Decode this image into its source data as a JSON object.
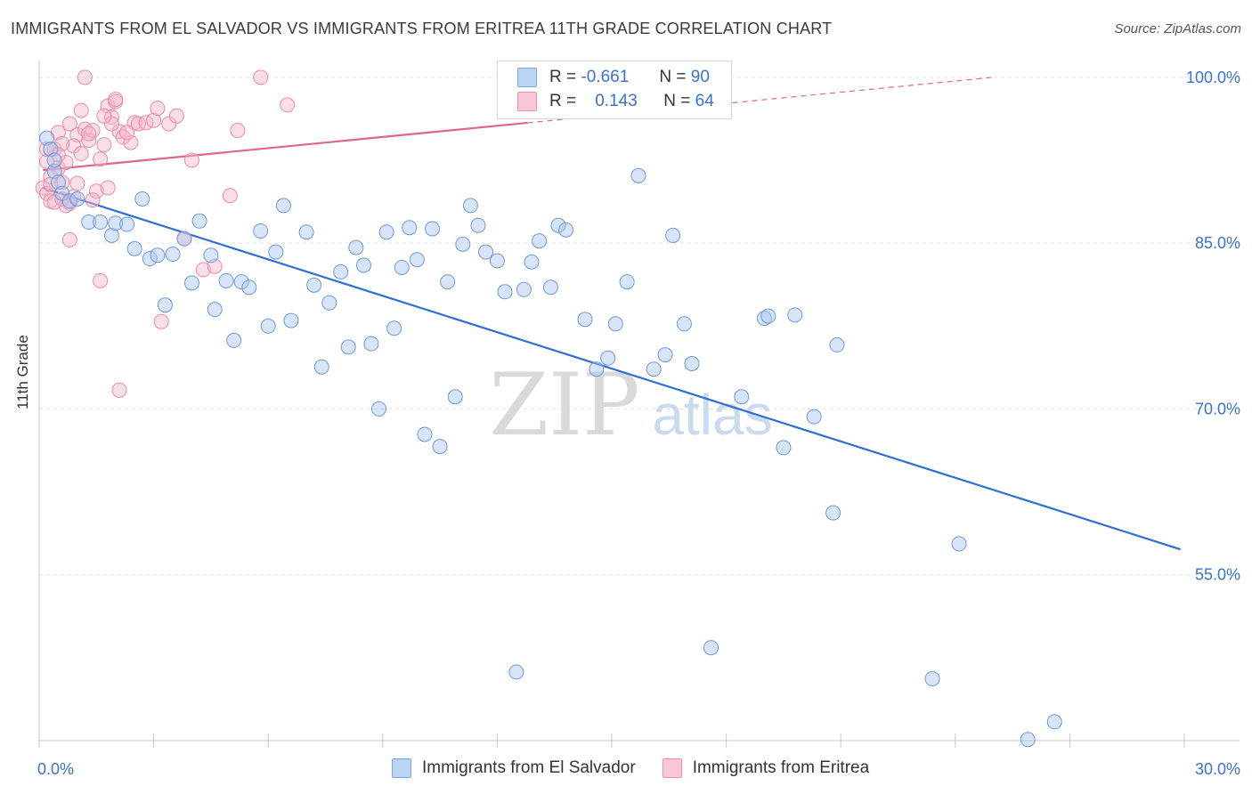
{
  "title": "IMMIGRANTS FROM EL SALVADOR VS IMMIGRANTS FROM ERITREA 11TH GRADE CORRELATION CHART",
  "source": "Source: ZipAtlas.com",
  "watermark": {
    "zip": "ZIP",
    "atlas": "atlas"
  },
  "legend": {
    "r_label": "R =",
    "n_label": "N =",
    "series": [
      {
        "name": "Immigrants from El Salvador",
        "r": "-0.661",
        "n": "90"
      },
      {
        "name": "Immigrants from Eritrea",
        "r": "0.143",
        "n": "64"
      }
    ]
  },
  "chart_data": {
    "type": "scatter",
    "ylabel": "11th Grade",
    "xlim": [
      0,
      30
    ],
    "ylim": [
      40,
      102
    ],
    "x_tick_labels": [
      {
        "value": 0,
        "label": "0.0%"
      },
      {
        "value": 30,
        "label": "30.0%"
      }
    ],
    "y_tick_labels": [
      {
        "value": 100,
        "label": "100.0%"
      },
      {
        "value": 85,
        "label": "85.0%"
      },
      {
        "value": 70,
        "label": "70.0%"
      },
      {
        "value": 55,
        "label": "55.0%"
      }
    ],
    "colors": {
      "el_salvador": "#a9c6ef",
      "el_salvador_line": "#2e6fd1",
      "eritrea": "#f4b6c9",
      "eritrea_line": "#e0658f"
    },
    "series": [
      {
        "name": "Immigrants from El Salvador",
        "trend": {
          "x0": 0.1,
          "y0": 90.0,
          "x1": 29.9,
          "y1": 57.3,
          "dashed_from": null
        },
        "points": [
          [
            0.2,
            94.5
          ],
          [
            0.3,
            93.5
          ],
          [
            0.4,
            91.5
          ],
          [
            0.5,
            90.5
          ],
          [
            0.6,
            89.5
          ],
          [
            0.8,
            88.8
          ],
          [
            1.0,
            89.0
          ],
          [
            1.3,
            86.9
          ],
          [
            1.6,
            86.9
          ],
          [
            1.9,
            85.7
          ],
          [
            2.0,
            86.8
          ],
          [
            2.3,
            86.7
          ],
          [
            2.5,
            84.5
          ],
          [
            2.7,
            89.0
          ],
          [
            2.9,
            83.6
          ],
          [
            3.1,
            83.9
          ],
          [
            3.3,
            79.4
          ],
          [
            3.5,
            84.0
          ],
          [
            3.8,
            85.4
          ],
          [
            4.0,
            81.4
          ],
          [
            4.2,
            87.0
          ],
          [
            4.5,
            83.9
          ],
          [
            4.6,
            79.0
          ],
          [
            4.9,
            81.6
          ],
          [
            5.1,
            76.2
          ],
          [
            5.3,
            81.5
          ],
          [
            5.5,
            81.0
          ],
          [
            5.8,
            86.1
          ],
          [
            6.0,
            77.5
          ],
          [
            6.2,
            84.2
          ],
          [
            6.4,
            88.4
          ],
          [
            6.6,
            78.0
          ],
          [
            7.0,
            86.0
          ],
          [
            7.2,
            81.2
          ],
          [
            7.4,
            73.8
          ],
          [
            7.6,
            79.6
          ],
          [
            7.9,
            82.4
          ],
          [
            8.1,
            75.6
          ],
          [
            8.3,
            84.6
          ],
          [
            8.5,
            83.0
          ],
          [
            8.7,
            75.9
          ],
          [
            8.9,
            70.0
          ],
          [
            9.1,
            86.0
          ],
          [
            9.3,
            77.3
          ],
          [
            9.5,
            82.8
          ],
          [
            9.7,
            86.4
          ],
          [
            9.9,
            83.5
          ],
          [
            10.1,
            67.7
          ],
          [
            10.3,
            86.3
          ],
          [
            10.5,
            66.6
          ],
          [
            10.7,
            81.5
          ],
          [
            10.9,
            71.1
          ],
          [
            11.1,
            84.9
          ],
          [
            11.3,
            88.4
          ],
          [
            11.5,
            86.6
          ],
          [
            11.7,
            84.2
          ],
          [
            12.0,
            83.4
          ],
          [
            12.2,
            80.6
          ],
          [
            12.5,
            46.2
          ],
          [
            12.7,
            80.8
          ],
          [
            12.9,
            83.3
          ],
          [
            13.1,
            85.2
          ],
          [
            13.4,
            81.0
          ],
          [
            13.6,
            86.6
          ],
          [
            13.8,
            86.2
          ],
          [
            14.3,
            78.1
          ],
          [
            14.6,
            73.6
          ],
          [
            14.9,
            74.6
          ],
          [
            15.1,
            77.7
          ],
          [
            15.4,
            81.5
          ],
          [
            15.7,
            91.1
          ],
          [
            16.1,
            73.6
          ],
          [
            16.4,
            74.9
          ],
          [
            16.6,
            85.7
          ],
          [
            16.9,
            77.7
          ],
          [
            17.1,
            74.1
          ],
          [
            17.6,
            48.4
          ],
          [
            18.4,
            71.1
          ],
          [
            19.0,
            78.2
          ],
          [
            19.1,
            78.4
          ],
          [
            19.5,
            66.5
          ],
          [
            19.8,
            78.5
          ],
          [
            20.3,
            69.3
          ],
          [
            20.8,
            60.6
          ],
          [
            20.9,
            75.8
          ],
          [
            23.4,
            45.6
          ],
          [
            24.1,
            57.8
          ],
          [
            25.9,
            40.1
          ],
          [
            26.6,
            41.7
          ],
          [
            0.4,
            92.5
          ]
        ]
      },
      {
        "name": "Immigrants from Eritrea",
        "trend": {
          "x0": 0.1,
          "y0": 91.6,
          "x1": 25.0,
          "y1": 100.0,
          "dashed_from": 12.8
        },
        "points": [
          [
            0.1,
            90.0
          ],
          [
            0.2,
            89.5
          ],
          [
            0.3,
            88.8
          ],
          [
            0.4,
            93.5
          ],
          [
            0.5,
            91.8
          ],
          [
            0.6,
            90.5
          ],
          [
            0.7,
            92.3
          ],
          [
            0.8,
            88.6
          ],
          [
            0.9,
            89.2
          ],
          [
            1.0,
            94.8
          ],
          [
            0.2,
            92.4
          ],
          [
            0.3,
            91.0
          ],
          [
            0.5,
            95.0
          ],
          [
            0.6,
            89.0
          ],
          [
            0.7,
            88.4
          ],
          [
            0.8,
            85.3
          ],
          [
            0.9,
            93.8
          ],
          [
            1.1,
            97.0
          ],
          [
            1.2,
            95.3
          ],
          [
            1.3,
            94.3
          ],
          [
            1.4,
            95.2
          ],
          [
            1.5,
            89.7
          ],
          [
            1.6,
            81.6
          ],
          [
            1.7,
            93.9
          ],
          [
            1.8,
            97.4
          ],
          [
            1.9,
            96.4
          ],
          [
            2.0,
            97.8
          ],
          [
            2.1,
            95.1
          ],
          [
            2.2,
            94.6
          ],
          [
            2.4,
            94.1
          ],
          [
            2.5,
            95.9
          ],
          [
            2.6,
            95.8
          ],
          [
            2.8,
            95.9
          ],
          [
            3.0,
            96.1
          ],
          [
            3.1,
            97.2
          ],
          [
            3.2,
            77.9
          ],
          [
            3.4,
            95.8
          ],
          [
            3.6,
            96.5
          ],
          [
            3.8,
            85.4
          ],
          [
            4.0,
            92.5
          ],
          [
            4.3,
            82.6
          ],
          [
            4.6,
            82.9
          ],
          [
            5.0,
            89.3
          ],
          [
            5.2,
            95.2
          ],
          [
            5.8,
            100.0
          ],
          [
            6.5,
            97.5
          ],
          [
            1.2,
            100.0
          ],
          [
            0.4,
            88.7
          ],
          [
            0.6,
            94.0
          ],
          [
            1.1,
            93.1
          ],
          [
            1.3,
            94.9
          ],
          [
            1.6,
            92.6
          ],
          [
            1.8,
            90.0
          ],
          [
            1.9,
            95.8
          ],
          [
            2.1,
            71.7
          ],
          [
            2.3,
            95.0
          ],
          [
            0.3,
            90.3
          ],
          [
            0.5,
            93.0
          ],
          [
            0.8,
            95.8
          ],
          [
            1.0,
            90.4
          ],
          [
            1.4,
            88.9
          ],
          [
            1.7,
            96.5
          ],
          [
            2.0,
            98.0
          ],
          [
            0.2,
            93.5
          ]
        ]
      }
    ]
  }
}
